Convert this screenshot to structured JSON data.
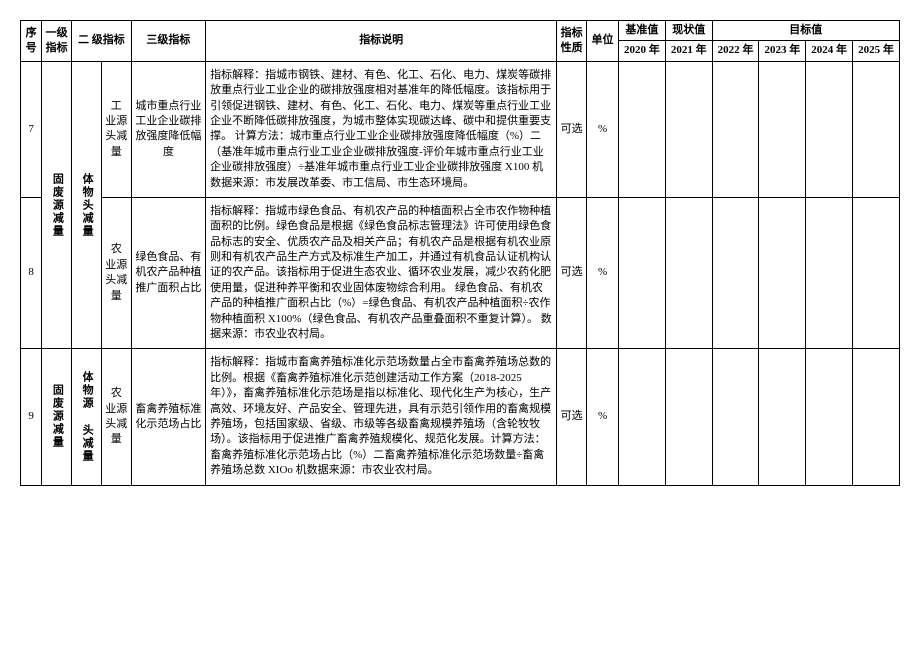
{
  "headers": {
    "seq": "序号",
    "level1": "一级指标",
    "level2": "二 级指标",
    "level3": "三级指标",
    "desc": "指标说明",
    "property": "指标性质",
    "unit": "单位",
    "base": "基准值",
    "current": "现状值",
    "target": "目标值",
    "y2020": "2020 年",
    "y2021": "2021 年",
    "y2022": "2022 年",
    "y2023": "2023 年",
    "y2024": "2024 年",
    "y2025": "2025 年"
  },
  "rows": [
    {
      "seq": "7",
      "level1": "固废源减量",
      "level2": "体物头减量",
      "level2_sub": "工 业源 头减量",
      "level3": "城市重点行业工业企业碳排放强度降低幅度",
      "desc": "指标解释：指城市钢铁、建材、有色、化工、石化、电力、煤炭等碳排放重点行业工业企业的碳排放强度相对基准年的降低幅度。该指标用于引领促进钢铁、建材、有色、化工、石化、电力、煤炭等重点行业工业企业不断降低碳排放强度，为城市整体实现碳达峰、碳中和提供重要支撑。\n计算方法：城市重点行业工业企业碳排放强度降低幅度（%）二（基准年城市重点行业工业企业碳排放强度-评价年城市重点行业工业企业碳排放强度）÷基准年城市重点行业工业企业碳排放强度 X100 机数据来源：市发展改革委、市工信局、市生态环境局。",
      "property": "可选",
      "unit": "%"
    },
    {
      "seq": "8",
      "level2_sub": "农 业源 头减量",
      "level3": "绿色食品、有机农产品种植推广面积占比",
      "desc": "指标解释：指城市绿色食品、有机农产品的种植面积占全市农作物种植面积的比例。绿色食品是根据《绿色食品标志管理法》许可使用绿色食品标志的安全、优质农产品及相关产品；有机农产品是根据有机农业原则和有机农产品生产方式及标准生产加工，并通过有机食品认证机构认证的农产品。该指标用于促进生态农业、循环农业发展，减少农药化肥使用量，促进种养平衡和农业固体废物综合利用。\n绿色食品、有机农产品的种植推广面积占比（%）=绿色食品、有机农产品种植面积÷农作物种植面积 X100%（绿色食品、有机农产品重叠面积不重复计算）。\n数据来源：市农业农村局。",
      "property": "可选",
      "unit": "%"
    },
    {
      "seq": "9",
      "level1": "固废源减量",
      "level2": "体物源 头减量",
      "level2_sub": "农 业源 头减量",
      "level3": "畜禽养殖标准化示范场占比",
      "desc": "指标解释：指城市畜禽养殖标准化示范场数量占全市畜禽养殖场总数的比例。根据《畜禽养殖标准化示范创建活动工作方案（2018-2025年）》，畜禽养殖标准化示范场是指以标准化、现代化生产为核心，生产高效、环境友好、产品安全、管理先进，具有示范引领作用的畜禽规模养殖场，包括国家级、省级、市级等各级畜禽规模养殖场（含轮牧牧场）。该指标用于促进推广畜禽养殖规模化、规范化发展。计算方法：畜禽养殖标准化示范场占比（%）二畜禽养殖标准化示范场数量÷畜禽养殖场总数 XIOo 机数据来源：市农业农村局。",
      "property": "可选",
      "unit": "%"
    }
  ]
}
